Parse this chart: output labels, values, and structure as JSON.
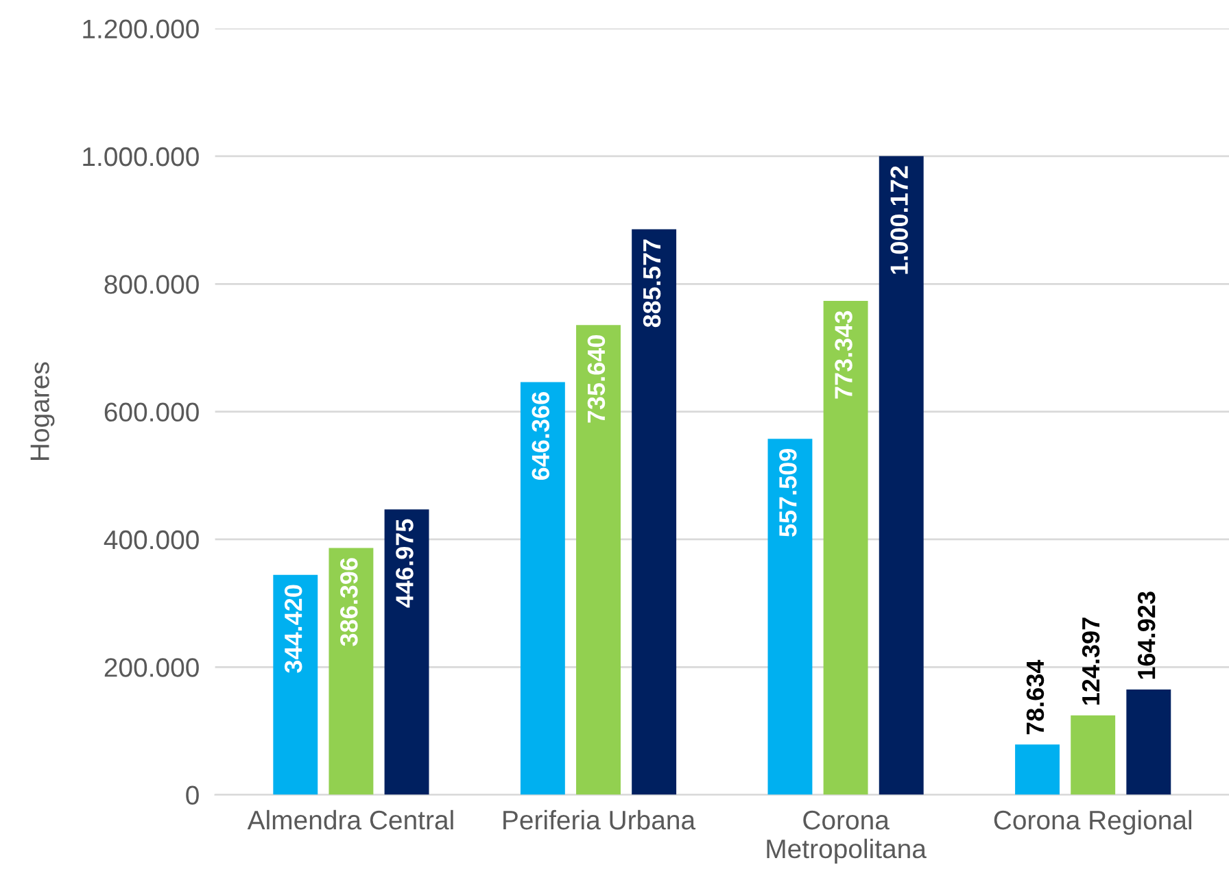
{
  "chart_data": {
    "type": "bar",
    "ylabel": "Hogares",
    "categories": [
      "Almendra Central",
      "Periferia Urbana",
      "Corona\nMetropolitana",
      "Corona Regional"
    ],
    "series": [
      {
        "color": "#00b0f0",
        "values": [
          344420,
          646366,
          557509,
          78634
        ],
        "value_labels": [
          "344.420",
          "646.366",
          "557.509",
          "78.634"
        ]
      },
      {
        "color": "#92d050",
        "values": [
          386396,
          735640,
          773343,
          124397
        ],
        "value_labels": [
          "386.396",
          "735.640",
          "773.343",
          "124.397"
        ]
      },
      {
        "color": "#002060",
        "values": [
          446975,
          885577,
          1000172,
          164923
        ],
        "value_labels": [
          "446.975",
          "885.577",
          "1.000.172",
          "164.923"
        ]
      }
    ],
    "ylim": [
      0,
      1200000
    ],
    "yticks": [
      0,
      {
        "value": 200000,
        "label": "200.000"
      },
      {
        "value": 400000,
        "label": "400.000"
      },
      {
        "value": 600000,
        "label": "600.000"
      },
      {
        "value": 800000,
        "label": "800.000"
      },
      {
        "value": 1000000,
        "label": "1.000.000"
      },
      {
        "value": 1200000,
        "label": "1.200.000"
      }
    ],
    "grid": "y",
    "legend": false
  }
}
